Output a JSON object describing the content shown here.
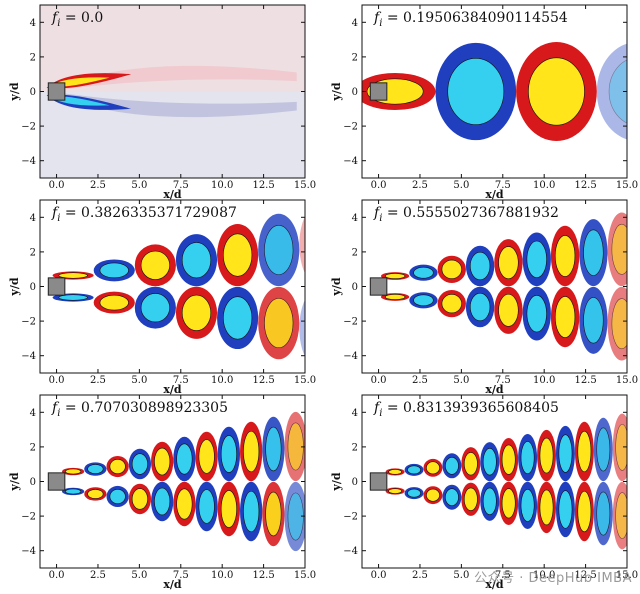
{
  "figure": {
    "xlabel": "x/d",
    "ylabel": "y/d",
    "xticks": [
      "0.0",
      "2.5",
      "5.0",
      "7.5",
      "10.0",
      "12.5",
      "15.0"
    ],
    "yticks": [
      "4",
      "2",
      "0",
      "−2",
      "−4"
    ],
    "xlim": [
      -1,
      15
    ],
    "ylim": [
      -5,
      5
    ],
    "colors": {
      "positive_strong": "#d7191c",
      "positive_weak": "#ffe51a",
      "negative_strong": "#1f3fbf",
      "negative_weak": "#35d0f0",
      "obstacle": "#8a8a8a"
    },
    "panels": [
      {
        "label": "f_i = 0.0",
        "freq": 0.0
      },
      {
        "label": "f_i = 0.19506384090114554",
        "freq": 0.19506384090114554
      },
      {
        "label": "f_i = 0.3826335371729087",
        "freq": 0.3826335371729087
      },
      {
        "label": "f_i = 0.5555027367881932",
        "freq": 0.5555027367881932
      },
      {
        "label": "f_i = 0.707030898923305",
        "freq": 0.707030898923305
      },
      {
        "label": "f_i = 0.8313939365608405",
        "freq": 0.8313939365608405
      }
    ]
  },
  "watermark": "公众号 · DeepHub IMBA"
}
